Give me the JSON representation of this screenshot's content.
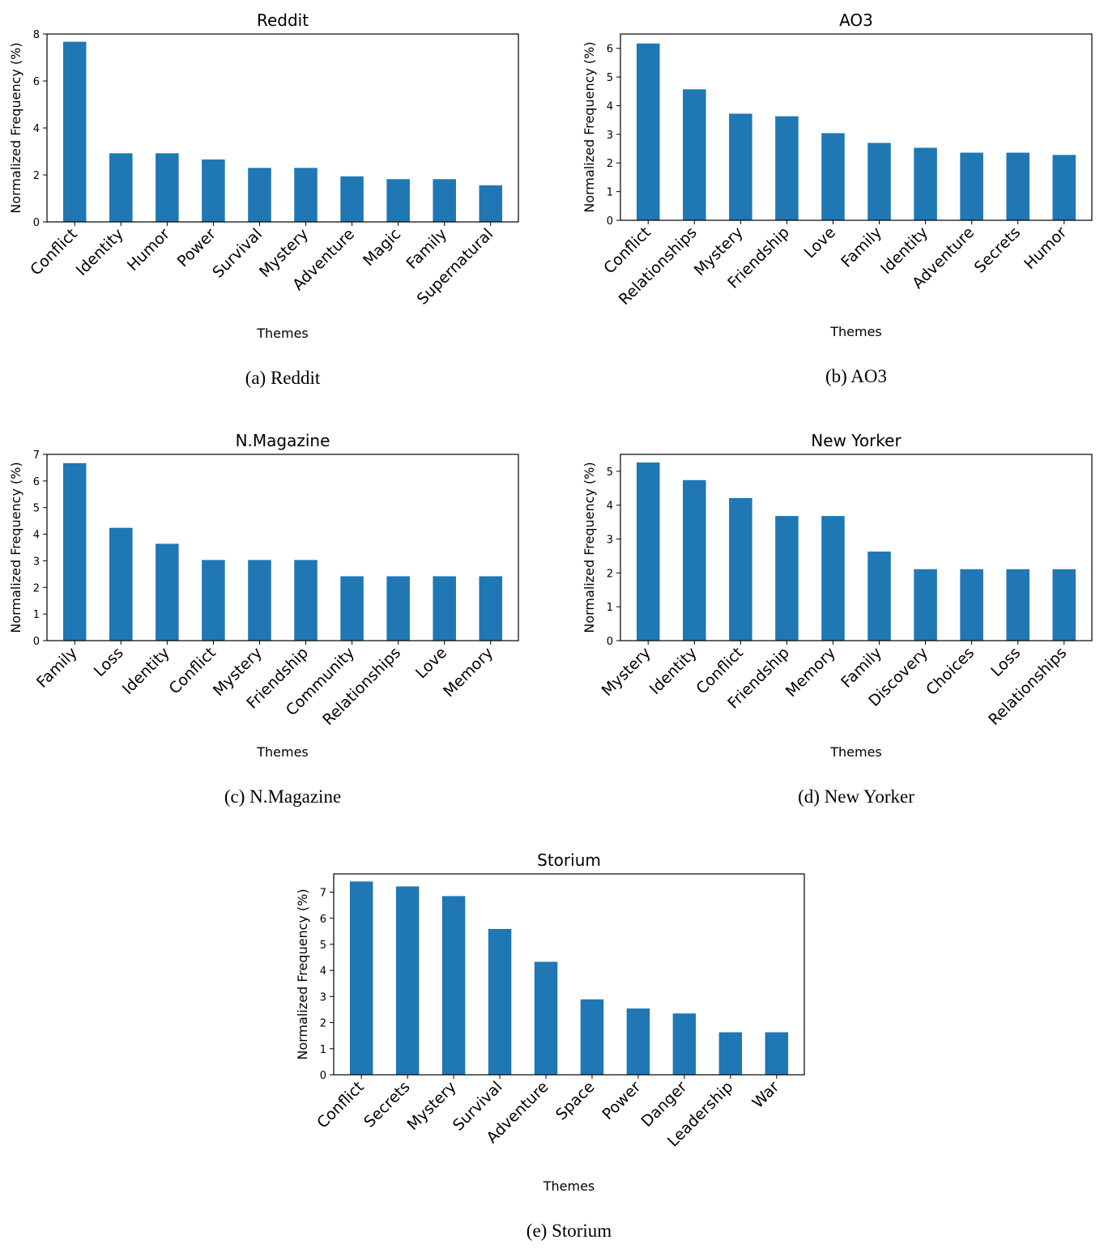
{
  "style": {
    "bar_color": "#1f77b4",
    "axis_color": "#000000",
    "background": "#ffffff"
  },
  "chart_data": [
    {
      "type": "bar",
      "title": "Reddit",
      "caption": "(a) Reddit",
      "xlabel": "Themes",
      "ylabel": "Normalized Frequency (%)",
      "ylim": [
        0,
        8
      ],
      "yticks": [
        0,
        2,
        4,
        6,
        8
      ],
      "categories": [
        "Conflict",
        "Identity",
        "Humor",
        "Power",
        "Survival",
        "Mystery",
        "Adventure",
        "Magic",
        "Family",
        "Supernatural"
      ],
      "values": [
        7.67,
        2.92,
        2.92,
        2.66,
        2.3,
        2.3,
        1.94,
        1.82,
        1.82,
        1.56
      ]
    },
    {
      "type": "bar",
      "title": "AO3",
      "caption": "(b) AO3",
      "xlabel": "Themes",
      "ylabel": "Normalized Frequency (%)",
      "ylim": [
        0,
        6.5
      ],
      "yticks": [
        0,
        1,
        2,
        3,
        4,
        5,
        6
      ],
      "categories": [
        "Conflict",
        "Relationships",
        "Mystery",
        "Friendship",
        "Love",
        "Family",
        "Identity",
        "Adventure",
        "Secrets",
        "Humor"
      ],
      "values": [
        6.17,
        4.57,
        3.72,
        3.63,
        3.04,
        2.7,
        2.53,
        2.36,
        2.36,
        2.28
      ]
    },
    {
      "type": "bar",
      "title": "N.Magazine",
      "caption": "(c) N.Magazine",
      "xlabel": "Themes",
      "ylabel": "Normalized Frequency (%)",
      "ylim": [
        0,
        7
      ],
      "yticks": [
        0,
        1,
        2,
        3,
        4,
        5,
        6,
        7
      ],
      "categories": [
        "Family",
        "Loss",
        "Identity",
        "Conflict",
        "Mystery",
        "Friendship",
        "Community",
        "Relationships",
        "Love",
        "Memory"
      ],
      "values": [
        6.67,
        4.24,
        3.64,
        3.03,
        3.03,
        3.03,
        2.42,
        2.42,
        2.42,
        2.42
      ]
    },
    {
      "type": "bar",
      "title": "New Yorker",
      "caption": "(d) New Yorker",
      "xlabel": "Themes",
      "ylabel": "Normalized Frequency (%)",
      "ylim": [
        0,
        5.5
      ],
      "yticks": [
        0,
        1,
        2,
        3,
        4,
        5
      ],
      "categories": [
        "Mystery",
        "Identity",
        "Conflict",
        "Friendship",
        "Memory",
        "Family",
        "Discovery",
        "Choices",
        "Loss",
        "Relationships"
      ],
      "values": [
        5.26,
        4.74,
        4.21,
        3.68,
        3.68,
        2.63,
        2.11,
        2.11,
        2.11,
        2.11
      ]
    },
    {
      "type": "bar",
      "title": "Storium",
      "caption": "(e) Storium",
      "xlabel": "Themes",
      "ylabel": "Normalized Frequency (%)",
      "ylim": [
        0,
        7.7
      ],
      "yticks": [
        0,
        1,
        2,
        3,
        4,
        5,
        6,
        7
      ],
      "categories": [
        "Conflict",
        "Secrets",
        "Mystery",
        "Survival",
        "Adventure",
        "Space",
        "Power",
        "Danger",
        "Leadership",
        "War"
      ],
      "values": [
        7.41,
        7.22,
        6.85,
        5.59,
        4.33,
        2.89,
        2.54,
        2.35,
        1.63,
        1.63
      ]
    }
  ]
}
